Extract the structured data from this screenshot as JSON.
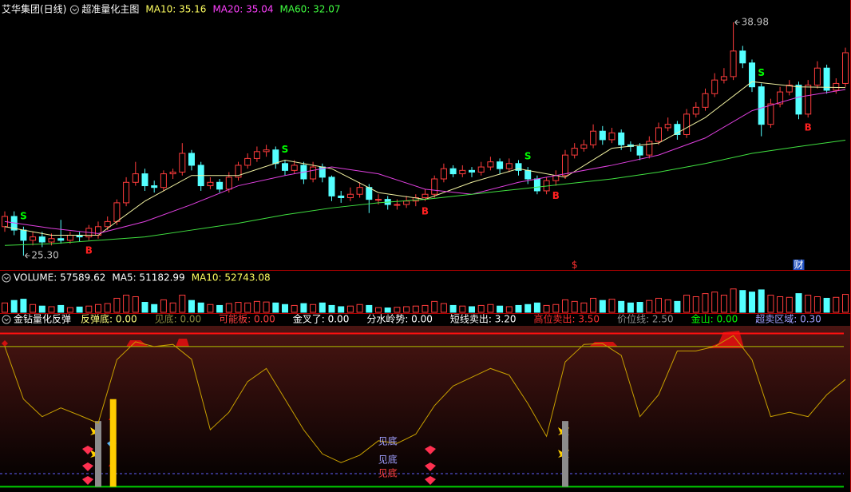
{
  "chart_data": [
    {
      "type": "candlestick",
      "title": "艾华集团(日线)",
      "subtitle": "超准量化主图",
      "legend_texts": [
        {
          "text": "MA10: 35.16",
          "color": "#ffff60"
        },
        {
          "text": "MA20: 35.04",
          "color": "#ff40ff"
        },
        {
          "text": "MA60: 32.07",
          "color": "#40ff40"
        }
      ],
      "up_color": "#ff3c3c",
      "down_color": "#54ffff",
      "ylim": [
        25.0,
        39.5
      ],
      "open": [
        27.0,
        27.6,
        26.8,
        26.2,
        26.4,
        26.1,
        26.3,
        26.2,
        26.5,
        26.4,
        26.5,
        27.0,
        27.3,
        28.4,
        29.6,
        30.1,
        29.4,
        29.3,
        30.1,
        30.2,
        31.3,
        30.6,
        29.4,
        29.6,
        29.2,
        29.9,
        30.6,
        31.0,
        31.4,
        31.5,
        30.7,
        30.3,
        30.6,
        29.8,
        30.5,
        29.9,
        28.8,
        28.7,
        28.9,
        29.3,
        28.6,
        28.6,
        28.3,
        28.3,
        28.5,
        28.7,
        28.9,
        29.8,
        30.4,
        30.1,
        30.3,
        30.2,
        30.5,
        30.8,
        30.4,
        30.7,
        30.3,
        29.8,
        29.1,
        29.7,
        30.0,
        31.2,
        31.6,
        31.8,
        32.6,
        32.1,
        32.5,
        31.8,
        31.7,
        31.2,
        32.0,
        32.8,
        33.0,
        32.4,
        33.6,
        34.0,
        34.8,
        35.6,
        35.8,
        37.3,
        36.6,
        35.2,
        33.0,
        34.2,
        34.9,
        35.3,
        33.6,
        35.3,
        36.3,
        35.0,
        35.4
      ],
      "high": [
        27.9,
        27.9,
        27.0,
        26.7,
        26.7,
        26.6,
        27.4,
        26.7,
        26.7,
        27.1,
        27.3,
        27.6,
        28.6,
        29.9,
        30.8,
        30.4,
        29.7,
        30.3,
        30.4,
        31.9,
        31.5,
        30.8,
        29.9,
        29.8,
        30.2,
        30.8,
        31.3,
        31.7,
        31.8,
        31.7,
        30.9,
        30.9,
        30.8,
        30.8,
        30.7,
        30.0,
        29.1,
        29.3,
        29.6,
        29.5,
        28.9,
        28.8,
        28.6,
        28.8,
        28.9,
        29.2,
        30.0,
        30.7,
        30.6,
        30.6,
        30.5,
        30.8,
        31.1,
        31.0,
        31.0,
        30.9,
        30.5,
        30.0,
        29.9,
        30.3,
        31.5,
        31.9,
        32.1,
        33.0,
        32.9,
        32.8,
        32.7,
        32.0,
        31.9,
        32.3,
        33.1,
        33.4,
        33.2,
        33.9,
        34.3,
        35.1,
        36.0,
        36.3,
        38.98,
        37.6,
        36.8,
        35.4,
        34.5,
        35.2,
        35.6,
        35.5,
        35.6,
        36.7,
        36.5,
        35.7,
        37.5
      ],
      "low": [
        26.7,
        26.5,
        25.3,
        25.9,
        25.8,
        25.9,
        26.0,
        26.0,
        26.1,
        26.2,
        26.3,
        26.8,
        27.1,
        28.2,
        29.4,
        29.1,
        29.0,
        29.1,
        29.8,
        30.0,
        30.3,
        29.1,
        29.2,
        29.0,
        29.0,
        29.7,
        30.4,
        30.8,
        31.1,
        30.4,
        30.0,
        30.1,
        29.5,
        29.6,
        29.6,
        28.5,
        28.4,
        28.5,
        28.7,
        27.8,
        28.3,
        28.0,
        28.0,
        28.1,
        28.2,
        28.5,
        28.7,
        29.6,
        29.9,
        29.9,
        29.9,
        30.0,
        30.3,
        30.1,
        30.2,
        30.0,
        29.5,
        28.9,
        28.9,
        29.4,
        29.8,
        31.0,
        31.4,
        31.6,
        31.8,
        31.9,
        31.5,
        31.4,
        30.9,
        31.0,
        31.8,
        32.6,
        32.1,
        32.2,
        33.4,
        33.8,
        34.6,
        35.4,
        35.6,
        36.3,
        34.9,
        32.3,
        32.8,
        34.0,
        34.7,
        33.3,
        33.4,
        35.1,
        34.8,
        34.8,
        35.2
      ],
      "close": [
        27.6,
        26.8,
        26.2,
        26.4,
        26.1,
        26.3,
        26.2,
        26.5,
        26.4,
        26.9,
        27.0,
        27.3,
        28.4,
        29.6,
        30.1,
        29.4,
        29.3,
        30.1,
        30.2,
        31.3,
        30.6,
        29.4,
        29.6,
        29.2,
        29.9,
        30.6,
        31.0,
        31.4,
        31.5,
        30.7,
        30.3,
        30.6,
        29.8,
        30.5,
        29.9,
        28.8,
        28.7,
        28.9,
        29.3,
        28.6,
        28.6,
        28.3,
        28.3,
        28.5,
        28.7,
        28.9,
        29.8,
        30.4,
        30.1,
        30.3,
        30.2,
        30.5,
        30.8,
        30.4,
        30.7,
        30.3,
        29.8,
        29.1,
        29.7,
        30.0,
        31.2,
        31.6,
        31.8,
        32.6,
        32.1,
        32.5,
        31.8,
        31.7,
        31.2,
        32.0,
        32.8,
        33.0,
        32.4,
        33.6,
        34.0,
        34.8,
        35.6,
        35.8,
        37.3,
        36.6,
        35.2,
        33.0,
        34.2,
        34.9,
        35.3,
        33.6,
        35.3,
        36.3,
        35.0,
        35.4,
        37.2
      ],
      "lines": [
        {
          "color": "#f0f0a0",
          "x": [
            0,
            5,
            10,
            15,
            20,
            25,
            30,
            35,
            40,
            45,
            50,
            55,
            60,
            65,
            70,
            75,
            80,
            85,
            90
          ],
          "values": [
            27.0,
            26.5,
            26.5,
            28.5,
            30.0,
            30.0,
            30.9,
            30.4,
            29.0,
            28.6,
            29.6,
            30.4,
            29.9,
            31.6,
            31.9,
            33.4,
            35.5,
            35.2,
            35.16
          ]
        },
        {
          "color": "#e040e0",
          "x": [
            0,
            5,
            10,
            15,
            20,
            25,
            30,
            35,
            40,
            45,
            50,
            55,
            60,
            65,
            70,
            75,
            80,
            85,
            90
          ],
          "values": [
            27.3,
            26.9,
            26.6,
            27.3,
            28.3,
            29.4,
            30.0,
            30.5,
            30.1,
            29.2,
            28.9,
            29.6,
            30.1,
            30.6,
            31.2,
            32.2,
            33.8,
            34.6,
            35.04
          ]
        },
        {
          "color": "#40e040",
          "x": [
            0,
            5,
            10,
            15,
            20,
            25,
            30,
            35,
            40,
            45,
            50,
            55,
            60,
            65,
            70,
            75,
            80,
            85,
            90
          ],
          "values": [
            25.9,
            26.0,
            26.2,
            26.4,
            26.8,
            27.2,
            27.7,
            28.1,
            28.4,
            28.6,
            28.9,
            29.2,
            29.5,
            29.8,
            30.2,
            30.7,
            31.3,
            31.7,
            32.07
          ]
        }
      ],
      "signals": [
        {
          "text": "S",
          "index": 2,
          "position": "above",
          "color": "#00ff00"
        },
        {
          "text": "B",
          "index": 9,
          "position": "below",
          "color": "#ff2020"
        },
        {
          "text": "S",
          "index": 30,
          "position": "above",
          "color": "#00ff00"
        },
        {
          "text": "B",
          "index": 45,
          "position": "below",
          "color": "#ff2020"
        },
        {
          "text": "S",
          "index": 56,
          "position": "above",
          "color": "#00ff00"
        },
        {
          "text": "B",
          "index": 59,
          "position": "below",
          "color": "#ff2020"
        },
        {
          "text": "S",
          "index": 81,
          "position": "above",
          "color": "#00ff00"
        },
        {
          "text": "B",
          "index": 86,
          "position": "below",
          "color": "#ff2020"
        }
      ],
      "extreme_labels": [
        {
          "text": "38.98",
          "index": 78,
          "position": "above"
        },
        {
          "text": "25.30",
          "index": 2,
          "position": "below"
        }
      ],
      "events": [
        {
          "text": "$",
          "index": 61,
          "color": "#ff3030"
        },
        {
          "text": "财",
          "index": 85,
          "color": "#ffffff",
          "background": "#2050c0"
        }
      ]
    },
    {
      "type": "bar",
      "title": "VOLUME: 57589.62",
      "legend_texts": [
        {
          "text": "MA5: 51182.99",
          "color": "#ffffff"
        },
        {
          "text": "MA10: 52743.08",
          "color": "#ffff60"
        }
      ],
      "ylim": [
        0,
        100000
      ],
      "up_color": "#ff3c3c",
      "down_color": "#54ffff",
      "values": [
        30000,
        38000,
        42000,
        25000,
        20000,
        18000,
        22000,
        15000,
        17000,
        20000,
        25000,
        28000,
        45000,
        55000,
        50000,
        32000,
        25000,
        40000,
        30000,
        55000,
        38000,
        30000,
        25000,
        22000,
        28000,
        32000,
        30000,
        35000,
        33000,
        30000,
        25000,
        22000,
        28000,
        25000,
        30000,
        22000,
        18000,
        20000,
        25000,
        22000,
        15000,
        14000,
        16000,
        18000,
        20000,
        22000,
        35000,
        28000,
        22000,
        20000,
        18000,
        22000,
        25000,
        20000,
        18000,
        22000,
        25000,
        30000,
        22000,
        25000,
        40000,
        35000,
        30000,
        45000,
        38000,
        42000,
        35000,
        30000,
        32000,
        38000,
        45000,
        40000,
        35000,
        55000,
        50000,
        60000,
        65000,
        55000,
        75000,
        70000,
        65000,
        72000,
        55000,
        50000,
        48000,
        60000,
        55000,
        50000,
        45000,
        48000,
        57589.62
      ]
    },
    {
      "type": "line",
      "title": "金钻量化反弹",
      "legend_texts": [
        {
          "text": "反弹底: 0.00",
          "color": "#ffff80"
        },
        {
          "text": "见底: 0.00",
          "color": "#8a8a40"
        },
        {
          "text": "可能板: 0.00",
          "color": "#ff4040"
        },
        {
          "text": "金叉了: 0.00",
          "color": "#ffffff"
        },
        {
          "text": "分水岭势: 0.00",
          "color": "#ffffff"
        },
        {
          "text": "短线卖出: 3.20",
          "color": "#ffffff"
        },
        {
          "text": "高位卖出: 3.50",
          "color": "#ff3030"
        },
        {
          "text": "价位线: 2.50",
          "color": "#909090"
        },
        {
          "text": "金山: 0.00",
          "color": "#00ff00"
        },
        {
          "text": "超卖区域: 0.30",
          "color": "#a0a0ff"
        }
      ],
      "ylim": [
        0,
        3.6
      ],
      "color": "#c8a000",
      "x": [
        0,
        2,
        4,
        6,
        8,
        10,
        12,
        14,
        16,
        18,
        20,
        22,
        24,
        26,
        28,
        30,
        32,
        34,
        36,
        38,
        40,
        42,
        44,
        46,
        48,
        50,
        52,
        54,
        56,
        58,
        60,
        62,
        64,
        66,
        68,
        70,
        72,
        74,
        76,
        78,
        80,
        82,
        84,
        86,
        88,
        90
      ],
      "values": [
        3.2,
        2.0,
        1.6,
        1.8,
        1.63,
        1.45,
        2.9,
        3.31,
        3.2,
        3.25,
        2.91,
        1.3,
        1.7,
        2.4,
        2.7,
        2.0,
        1.3,
        0.75,
        0.55,
        0.72,
        1.05,
        0.99,
        1.2,
        1.85,
        2.3,
        2.5,
        2.7,
        2.55,
        1.9,
        1.15,
        2.85,
        3.25,
        3.27,
        3.0,
        1.6,
        2.1,
        3.1,
        3.1,
        3.2,
        3.45,
        2.9,
        1.6,
        1.7,
        1.6,
        2.1,
        2.45
      ],
      "reference_lines": [
        {
          "value": 3.5,
          "color": "#ff1010",
          "width": 2
        },
        {
          "value": 3.2,
          "color": "#b0c000",
          "width": 1
        },
        {
          "value": 0.3,
          "color": "#6060ff",
          "width": 1,
          "dashed": true
        },
        {
          "value": 0,
          "color": "#00d000",
          "width": 2
        }
      ],
      "signal_bars": [
        {
          "index": 10,
          "value": 1.5,
          "color": "#8c8c8c"
        },
        {
          "index": 11.6,
          "value": 2.0,
          "color": "#ffcc00"
        },
        {
          "index": 60,
          "value": 1.5,
          "color": "#8c8c8c"
        }
      ],
      "annotations": [
        {
          "text": "见底",
          "index": 41,
          "value": 1.03,
          "color": "#a0a0ff"
        },
        {
          "text": "见底",
          "index": 41,
          "value": 0.61,
          "color": "#a0a0ff"
        },
        {
          "text": "见底",
          "index": 41,
          "value": 0.3,
          "color": "#ff4040"
        }
      ]
    }
  ]
}
